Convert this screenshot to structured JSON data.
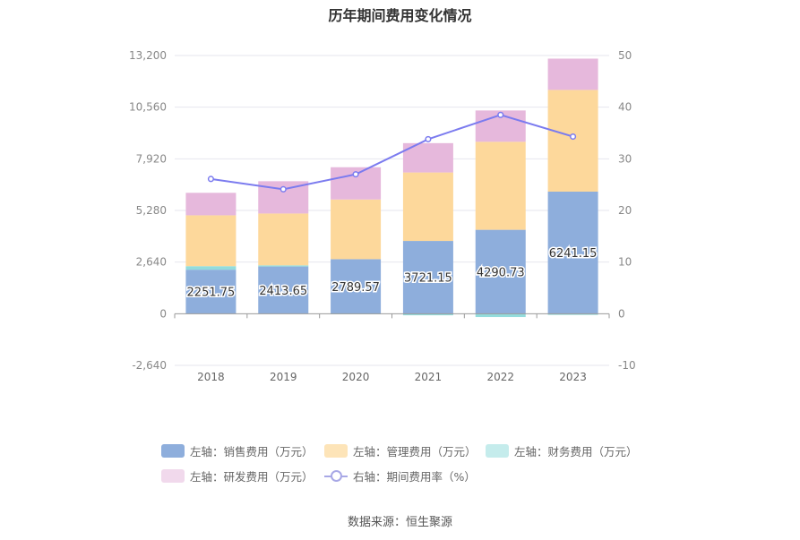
{
  "chart_data": {
    "type": "bar",
    "title": "历年期间费用变化情况",
    "categories": [
      "2018",
      "2019",
      "2020",
      "2021",
      "2022",
      "2023"
    ],
    "left_axis": {
      "ticks": [
        "-2,640",
        "0",
        "2,640",
        "5,280",
        "7,920",
        "10,560",
        "13,200"
      ],
      "ylim": [
        -2640,
        13200
      ]
    },
    "right_axis": {
      "ticks": [
        "-10",
        "0",
        "10",
        "20",
        "30",
        "40",
        "50"
      ],
      "ylim": [
        -10,
        50
      ]
    },
    "series": [
      {
        "name": "左轴：销售费用（万元）",
        "color": "#8eaedc",
        "values": [
          2251.75,
          2413.65,
          2789.57,
          3721.15,
          4290.73,
          6241.15
        ],
        "labels": [
          "2251.75",
          "2413.65",
          "2789.57",
          "3721.15",
          "4290.73",
          "6241.15"
        ]
      },
      {
        "name": "左轴：管理费用（万元）",
        "color": "#fdd89b",
        "values": [
          2600,
          2650,
          3050,
          3500,
          4500,
          5200
        ]
      },
      {
        "name": "左轴：财务费用（万元）",
        "color": "#93dcdc",
        "values": [
          180,
          60,
          -20,
          -80,
          -170,
          -60
        ]
      },
      {
        "name": "左轴：研发费用（万元）",
        "color": "#e6b8dc",
        "values": [
          1150,
          1650,
          1650,
          1500,
          1600,
          1600
        ]
      },
      {
        "name": "右轴：期间费用率（%）",
        "color": "#7b7bef",
        "type": "line",
        "axis": "right",
        "values": [
          26.1,
          24.1,
          27.0,
          33.8,
          38.5,
          34.3
        ]
      }
    ]
  },
  "source": "数据来源：恒生聚源"
}
